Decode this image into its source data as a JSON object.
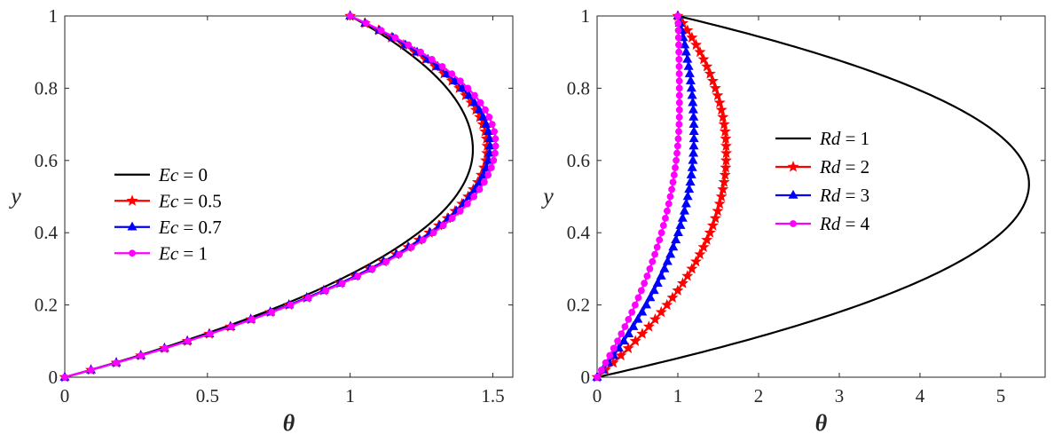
{
  "chart_data": [
    {
      "type": "line",
      "xlabel": "θ",
      "ylabel": "y",
      "xlim": [
        0,
        1.57
      ],
      "ylim": [
        0,
        1
      ],
      "xticks": [
        "0",
        "0.5",
        "1",
        "1.5"
      ],
      "yticks": [
        "0",
        "0.2",
        "0.4",
        "0.6",
        "0.8",
        "1"
      ],
      "legend_position": "center-left",
      "legend_variable": "Ec",
      "series": [
        {
          "name": "Ec = 0",
          "value_label": "0",
          "color": "#000000",
          "marker": "none",
          "peak_theta": 1.43,
          "peak_y": 0.63
        },
        {
          "name": "Ec = 0.5",
          "value_label": "0.5",
          "color": "#ff0000",
          "marker": "star",
          "peak_theta": 1.48,
          "peak_y": 0.635
        },
        {
          "name": "Ec = 0.7",
          "value_label": "0.7",
          "color": "#0000ff",
          "marker": "triangle",
          "peak_theta": 1.49,
          "peak_y": 0.64
        },
        {
          "name": "Ec = 1",
          "value_label": "1",
          "color": "#ff00ff",
          "marker": "circle",
          "peak_theta": 1.51,
          "peak_y": 0.645
        }
      ],
      "boundary": {
        "y0_theta": 0,
        "y1_theta": 1
      }
    },
    {
      "type": "line",
      "xlabel": "θ",
      "ylabel": "y",
      "xlim": [
        0,
        5.55
      ],
      "ylim": [
        0,
        1
      ],
      "xticks": [
        "0",
        "1",
        "2",
        "3",
        "4",
        "5"
      ],
      "yticks": [
        "0",
        "0.2",
        "0.4",
        "0.6",
        "0.8",
        "1"
      ],
      "legend_position": "center",
      "legend_variable": "Rd",
      "series": [
        {
          "name": "Rd = 1",
          "value_label": "1",
          "color": "#000000",
          "marker": "none",
          "peak_theta": 5.35,
          "peak_y": 0.535
        },
        {
          "name": "Rd = 2",
          "value_label": "2",
          "color": "#ff0000",
          "marker": "star",
          "peak_theta": 1.6,
          "peak_y": 0.62
        },
        {
          "name": "Rd = 3",
          "value_label": "3",
          "color": "#0000ff",
          "marker": "triangle",
          "peak_theta": 1.2,
          "peak_y": 0.67
        },
        {
          "name": "Rd = 4",
          "value_label": "4",
          "color": "#ff00ff",
          "marker": "circle",
          "peak_theta": 1.02,
          "peak_y": 0.75
        }
      ],
      "boundary": {
        "y0_theta": 0,
        "y1_theta": 1
      }
    }
  ]
}
